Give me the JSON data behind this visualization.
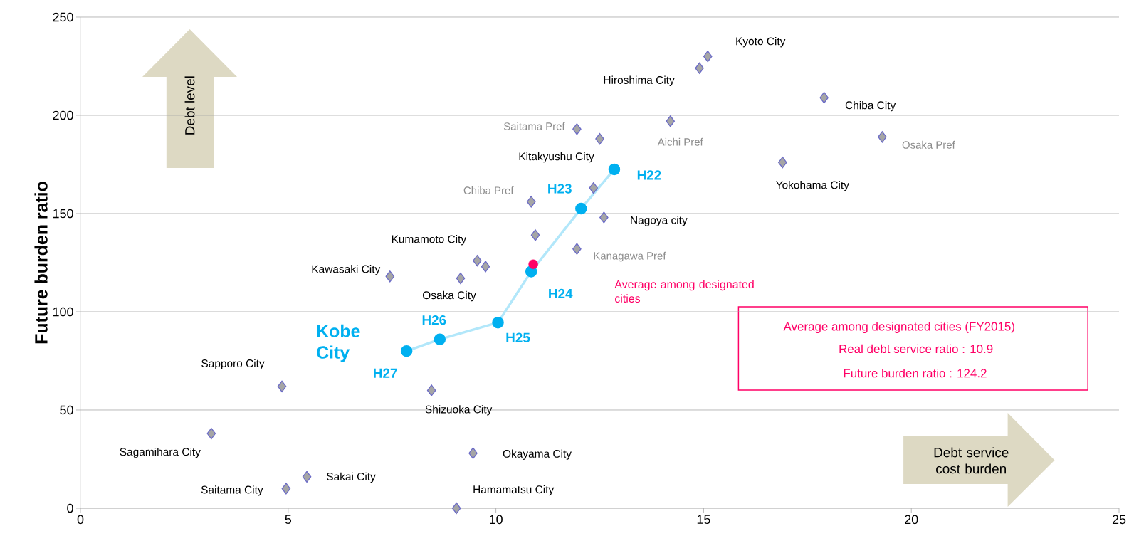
{
  "chart_data": {
    "type": "scatter",
    "ylabel": "Future burden ratio",
    "xlim": [
      0,
      25
    ],
    "ylim": [
      0,
      250
    ],
    "xticks": [
      0,
      5,
      10,
      15,
      20,
      25
    ],
    "yticks": [
      0,
      50,
      100,
      150,
      200,
      250
    ],
    "grid": "y",
    "series": [
      {
        "marker": "diamond",
        "color": "#a5a5a5",
        "x": [
          15.1,
          14.9,
          17.9,
          11.95,
          12.5,
          14.2,
          19.3,
          16.9,
          10.85,
          12.6,
          11.95,
          9.55,
          7.45,
          9.15,
          4.85,
          8.45,
          3.15,
          9.45,
          5.45,
          4.95,
          9.05,
          10.95,
          9.75,
          12.35
        ],
        "values": [
          230,
          224,
          209,
          193,
          188,
          197,
          189,
          176,
          156,
          148,
          132,
          126,
          118,
          117,
          62,
          60,
          38,
          28,
          16,
          10,
          0,
          139,
          123,
          163
        ]
      },
      {
        "type": "line",
        "name": "Kobe City",
        "marker": "circle",
        "color": "#00b0f0",
        "x": [
          12.85,
          12.05,
          10.85,
          10.05,
          8.65,
          7.85
        ],
        "values": [
          172.5,
          152.5,
          120.5,
          94.5,
          86,
          80
        ]
      },
      {
        "name": "Average among designated cities",
        "marker": "circle",
        "color": "#ff0066",
        "x": [
          10.9
        ],
        "values": [
          124.2
        ]
      }
    ],
    "annotations": [
      {
        "text": "Kyoto City",
        "x": 15.1,
        "y": 230
      },
      {
        "text": "Hiroshima City",
        "x": 14.9,
        "y": 224
      },
      {
        "text": "Chiba City",
        "x": 17.9,
        "y": 209
      },
      {
        "text": "Saitama Pref",
        "x": 11.95,
        "y": 193
      },
      {
        "text": "Kitakyushu City",
        "x": 12.5,
        "y": 188
      },
      {
        "text": "Aichi Pref",
        "x": 14.2,
        "y": 197
      },
      {
        "text": "Osaka Pref",
        "x": 19.3,
        "y": 189
      },
      {
        "text": "Yokohama City",
        "x": 16.9,
        "y": 176
      },
      {
        "text": "Chiba Pref",
        "x": 10.85,
        "y": 156
      },
      {
        "text": "Nagoya city",
        "x": 12.6,
        "y": 148
      },
      {
        "text": "Kanagawa Pref",
        "x": 11.95,
        "y": 132
      },
      {
        "text": "Kumamoto City",
        "x": 9.55,
        "y": 126
      },
      {
        "text": "Kawasaki City",
        "x": 7.45,
        "y": 118
      },
      {
        "text": "Osaka City",
        "x": 9.15,
        "y": 117
      },
      {
        "text": "Sapporo City",
        "x": 4.85,
        "y": 62
      },
      {
        "text": "Shizuoka City",
        "x": 8.45,
        "y": 60
      },
      {
        "text": "Sagamihara City",
        "x": 3.15,
        "y": 38
      },
      {
        "text": "Okayama City",
        "x": 9.45,
        "y": 28
      },
      {
        "text": "Sakai City",
        "x": 5.45,
        "y": 16
      },
      {
        "text": "Saitama City",
        "x": 4.95,
        "y": 10
      },
      {
        "text": "Hamamatsu City",
        "x": 9.05,
        "y": 0
      },
      {
        "text": "H22",
        "x": 12.85,
        "y": 172.5
      },
      {
        "text": "H23",
        "x": 12.05,
        "y": 152.5
      },
      {
        "text": "H24",
        "x": 10.85,
        "y": 120.5
      },
      {
        "text": "H25",
        "x": 10.05,
        "y": 94.5
      },
      {
        "text": "H26",
        "x": 8.65,
        "y": 86
      },
      {
        "text": "H27",
        "x": 7.85,
        "y": 80
      },
      "Average among designated cities (FY2015)",
      "Real debt service ratio : 10.9",
      "Future burden ratio : 124.2",
      "Debt level",
      "Debt service cost burden"
    ]
  }
}
